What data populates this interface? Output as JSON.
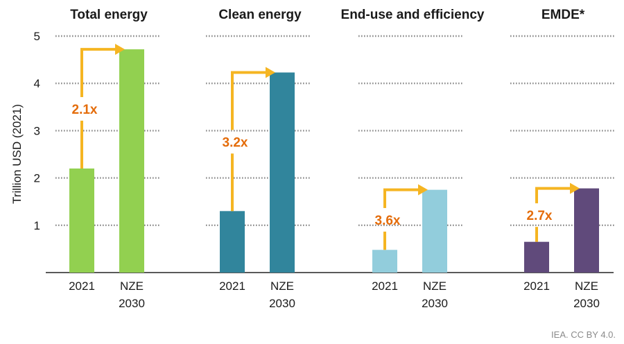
{
  "chart_data": {
    "type": "bar",
    "ylabel": "Trillion USD (2021)",
    "ylim": [
      0,
      5
    ],
    "yticks": [
      "1",
      "2",
      "3",
      "4",
      "5"
    ],
    "grid": true,
    "categories": [
      [
        "2021"
      ],
      [
        "NZE",
        "2030"
      ]
    ],
    "panels": [
      {
        "title": "Total energy",
        "values": [
          2.2,
          4.72
        ],
        "multiplier": "2.1x",
        "color": "#92d050"
      },
      {
        "title": "Clean energy",
        "values": [
          1.3,
          4.23
        ],
        "multiplier": "3.2x",
        "color": "#31859c"
      },
      {
        "title": "End-use and efficiency",
        "values": [
          0.48,
          1.75
        ],
        "multiplier": "3.6x",
        "color": "#92cddc"
      },
      {
        "title": "EMDE*",
        "values": [
          0.65,
          1.78
        ],
        "multiplier": "2.7x",
        "color": "#604a7b"
      }
    ],
    "arrow_color": "#f5b522",
    "multiplier_color": "#e46c0a"
  },
  "source": "IEA. CC BY 4.0."
}
